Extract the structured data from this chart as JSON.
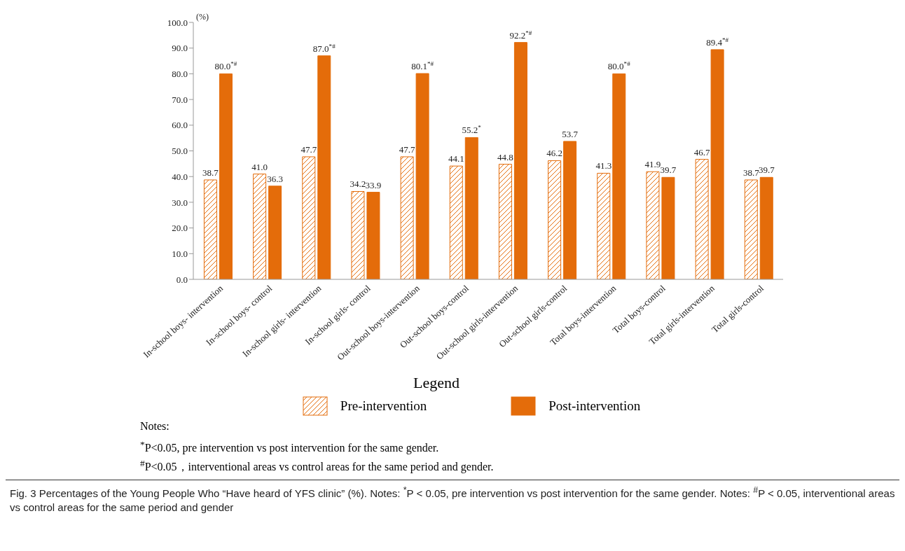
{
  "chart_data": {
    "type": "bar",
    "ylabel": "(%)",
    "legend_title": "Legend",
    "legend": "bottom",
    "categories": [
      "In-school boys- intervention",
      "In-school boys- control",
      "In-school girls- intervention",
      "In-school girls- control",
      "Out-school boys-intervention",
      "Out-school boys-control",
      "Out-school girls-intervention",
      "Out-school girls-control",
      "Total boys-intervention",
      "Total boys-control",
      "Total girls-intervention",
      "Total girls-control"
    ],
    "series": [
      {
        "name": "Pre-intervention",
        "color": "#e46c0a",
        "values": [
          38.7,
          41.0,
          47.7,
          34.2,
          47.7,
          44.1,
          44.8,
          46.2,
          41.3,
          41.9,
          46.7,
          38.7
        ],
        "value_labels": [
          "38.7",
          "41.0",
          "47.7",
          "34.2",
          "47.7",
          "44.1",
          "44.8",
          "46.2",
          "41.3",
          "41.9",
          "46.7",
          "38.7"
        ]
      },
      {
        "name": "Post-intervention",
        "color": "#e46c0a",
        "values": [
          80.0,
          36.3,
          87.0,
          33.9,
          80.1,
          55.2,
          92.2,
          53.7,
          80.0,
          39.7,
          89.4,
          39.7
        ],
        "value_labels": [
          "80.0$^{*#}$",
          "36.3",
          "87.0$^{*#}$",
          "33.9",
          "80.1$^{*#}$",
          "55.2$^{*}$",
          "92.2$^{*#}$",
          "53.7",
          "80.0$^{*#}$",
          "39.7",
          "89.4$^{*#}$",
          "39.7"
        ]
      }
    ],
    "ylim": [
      0,
      100
    ],
    "yticks": [
      {
        "value": 0,
        "label": "0.0"
      },
      {
        "value": 10,
        "label": "10.0"
      },
      {
        "value": 20,
        "label": "20.0"
      },
      {
        "value": 30,
        "label": "30.0"
      },
      {
        "value": 40,
        "label": "40.0"
      },
      {
        "value": 50,
        "label": "50.0"
      },
      {
        "value": 60,
        "label": "60.0"
      },
      {
        "value": 70,
        "label": "70.0"
      },
      {
        "value": 80,
        "label": "80.0"
      },
      {
        "value": 90,
        "label": "90.0"
      },
      {
        "value": 100,
        "label": "100.0"
      }
    ],
    "annotations": [
      "Notes:",
      "$^{*}$P<0.05, pre intervention vs post intervention for the same gender.",
      "$^{#}$P<0.05，interventional areas vs control areas for the same period and gender.",
      "Fig. 3 Percentages of the Young People Who “Have heard of YFS clinic” (%). Notes: $^{*}$P < 0.05, pre intervention vs post intervention for the same gender. Notes: $^{#}$P < 0.05, interventional areas vs control areas for the same period and gender"
    ]
  }
}
